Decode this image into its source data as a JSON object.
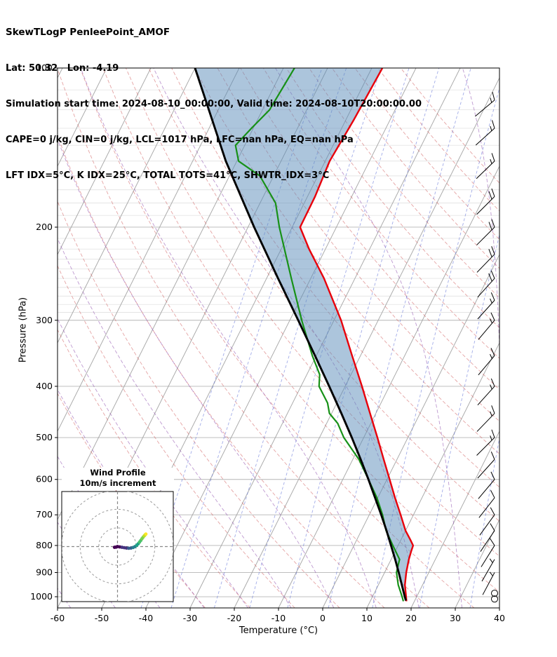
{
  "header": {
    "line1": "SkewTLogP PenleePoint_AMOF",
    "line2": "Lat: 50.32   Lon: -4.19",
    "line3": "Simulation start time: 2024-08-10_00:00:00, Valid time: 2024-08-10T20:00:00.00",
    "line4": "CAPE=0 j/kg, CIN=0 j/kg, LCL=1017 hPa, LFC=nan hPa, EQ=nan hPa",
    "line5": "LFT IDX=5°C, K IDX=25°C, TOTAL TOTS=41°C, SHWTR_IDX=3°C"
  },
  "chart_data": {
    "type": "line",
    "title": "SkewTLogP PenleePoint_AMOF",
    "xlabel": "Temperature (°C)",
    "ylabel": "Pressure (hPa)",
    "xlim": [
      -60,
      40
    ],
    "p_bottom": 1050,
    "p_top": 100,
    "skew": 0.5,
    "x_ticks": [
      -60,
      -50,
      -40,
      -30,
      -20,
      -10,
      0,
      10,
      20,
      30,
      40
    ],
    "y_ticks": [
      100,
      200,
      300,
      400,
      500,
      600,
      700,
      800,
      900,
      1000
    ],
    "temperature_profile": [
      [
        1020,
        18.2
      ],
      [
        1000,
        17.6
      ],
      [
        950,
        16.0
      ],
      [
        900,
        14.9
      ],
      [
        850,
        14.0
      ],
      [
        820,
        13.6
      ],
      [
        800,
        13.4
      ],
      [
        780,
        12.1
      ],
      [
        750,
        10.0
      ],
      [
        700,
        7.1
      ],
      [
        650,
        3.9
      ],
      [
        600,
        0.6
      ],
      [
        550,
        -3.0
      ],
      [
        500,
        -6.9
      ],
      [
        450,
        -11.3
      ],
      [
        400,
        -16.2
      ],
      [
        350,
        -21.9
      ],
      [
        300,
        -28.4
      ],
      [
        250,
        -37.0
      ],
      [
        220,
        -43.7
      ],
      [
        200,
        -48.2
      ],
      [
        175,
        -48.3
      ],
      [
        150,
        -49.0
      ],
      [
        125,
        -48.2
      ],
      [
        100,
        -47.6
      ]
    ],
    "dewpoint_profile": [
      [
        1020,
        17.5
      ],
      [
        1000,
        16.7
      ],
      [
        950,
        14.5
      ],
      [
        900,
        12.7
      ],
      [
        870,
        12.2
      ],
      [
        850,
        11.9
      ],
      [
        800,
        8.8
      ],
      [
        750,
        5.6
      ],
      [
        700,
        3.0
      ],
      [
        650,
        -0.2
      ],
      [
        600,
        -4.2
      ],
      [
        550,
        -8.6
      ],
      [
        500,
        -14.5
      ],
      [
        470,
        -17.5
      ],
      [
        450,
        -20.5
      ],
      [
        430,
        -22.1
      ],
      [
        400,
        -25.9
      ],
      [
        380,
        -27.1
      ],
      [
        350,
        -30.9
      ],
      [
        300,
        -37.3
      ],
      [
        250,
        -44.4
      ],
      [
        200,
        -52.9
      ],
      [
        180,
        -56.5
      ],
      [
        160,
        -63.1
      ],
      [
        150,
        -69.6
      ],
      [
        140,
        -72.1
      ],
      [
        130,
        -70.4
      ],
      [
        120,
        -68.4
      ],
      [
        100,
        -67.5
      ]
    ],
    "parcel_profile": [
      [
        1017,
        18.0
      ],
      [
        1000,
        17.3
      ],
      [
        950,
        15.3
      ],
      [
        900,
        13.2
      ],
      [
        850,
        10.9
      ],
      [
        800,
        8.4
      ],
      [
        750,
        5.7
      ],
      [
        700,
        2.7
      ],
      [
        650,
        -0.6
      ],
      [
        600,
        -4.2
      ],
      [
        550,
        -8.2
      ],
      [
        500,
        -12.7
      ],
      [
        450,
        -17.8
      ],
      [
        400,
        -23.6
      ],
      [
        350,
        -30.3
      ],
      [
        300,
        -38.1
      ],
      [
        250,
        -47.4
      ],
      [
        200,
        -58.6
      ],
      [
        150,
        -72.5
      ],
      [
        100,
        -90.0
      ]
    ],
    "background": {
      "isotherms": [
        -120,
        -110,
        -100,
        -90,
        -80,
        -70,
        -60,
        -50,
        -40,
        -30,
        -20,
        -10,
        0,
        10,
        20,
        30,
        40
      ],
      "dry_adiabats": [
        -30,
        -20,
        -10,
        0,
        10,
        20,
        30,
        40,
        50,
        60,
        70,
        80,
        90,
        100,
        110,
        120,
        130,
        140,
        150,
        160,
        170
      ],
      "moist_adiabats": [
        -60,
        -50,
        -40,
        -30,
        -20,
        -10,
        0,
        10,
        20,
        30,
        40
      ],
      "mixing_ratios": [
        0.1,
        0.2,
        0.5,
        1,
        2,
        4,
        8,
        16,
        32
      ],
      "minor_pressure_lines": [
        110,
        120,
        130,
        140,
        150,
        160,
        170,
        180,
        190,
        210,
        220,
        230,
        240,
        250,
        260,
        270,
        280,
        290
      ]
    },
    "colors": {
      "temperature": "#e8000b",
      "dewpoint": "#179117",
      "parcel": "#000000",
      "shade": "#5a8cba",
      "isotherm": "#a3a3a3",
      "grid": "#b5b5b5",
      "minor_grid": "#dcdcdc",
      "dry_adiabat": "#cf5a5a",
      "moist_adiabat": "#9355b0",
      "mixing": "#5668d6",
      "barb": "#000000"
    },
    "wind_barbs": [
      [
        115,
        15,
        40
      ],
      [
        130,
        15,
        42
      ],
      [
        150,
        15,
        44
      ],
      [
        175,
        20,
        45
      ],
      [
        200,
        20,
        45
      ],
      [
        225,
        20,
        46
      ],
      [
        250,
        20,
        48
      ],
      [
        275,
        15,
        48
      ],
      [
        300,
        15,
        50
      ],
      [
        350,
        15,
        50
      ],
      [
        400,
        15,
        48
      ],
      [
        450,
        15,
        46
      ],
      [
        500,
        15,
        45
      ],
      [
        550,
        10,
        48
      ],
      [
        600,
        10,
        50
      ],
      [
        650,
        10,
        52
      ],
      [
        700,
        10,
        54
      ],
      [
        750,
        10,
        56
      ],
      [
        800,
        10,
        58
      ],
      [
        850,
        5,
        60
      ],
      [
        900,
        5,
        62
      ]
    ],
    "calm_levels": [
      985,
      1010
    ],
    "hodograph": {
      "title": "Wind Profile",
      "subtitle": "10m/s increment",
      "rings": [
        10,
        20,
        30
      ],
      "points": [
        [
          -1.6,
          -0.4,
          0
        ],
        [
          -0.8,
          -0.3,
          0
        ],
        [
          0,
          0,
          0
        ],
        [
          1.2,
          -0.2,
          0
        ],
        [
          2.4,
          -0.4,
          1
        ],
        [
          3.6,
          -0.6,
          1
        ],
        [
          4.8,
          -0.8,
          1
        ],
        [
          6,
          -0.9,
          2
        ],
        [
          7.2,
          -0.8,
          2
        ],
        [
          8.4,
          -0.5,
          3
        ],
        [
          9.4,
          0,
          3
        ],
        [
          10.3,
          0.7,
          4
        ],
        [
          11.1,
          1.5,
          4
        ],
        [
          11.8,
          2.4,
          5
        ],
        [
          12.5,
          3.3,
          5
        ],
        [
          13.1,
          4.2,
          6
        ],
        [
          13.7,
          5,
          6
        ],
        [
          14.3,
          5.7,
          7
        ],
        [
          14.8,
          6.3,
          7
        ],
        [
          15.2,
          6.7,
          8
        ]
      ],
      "viridis": [
        "#440154",
        "#46327e",
        "#365c8d",
        "#277f8e",
        "#1fa187",
        "#4ac16d",
        "#7ad151",
        "#bddf26",
        "#fde725"
      ]
    }
  }
}
